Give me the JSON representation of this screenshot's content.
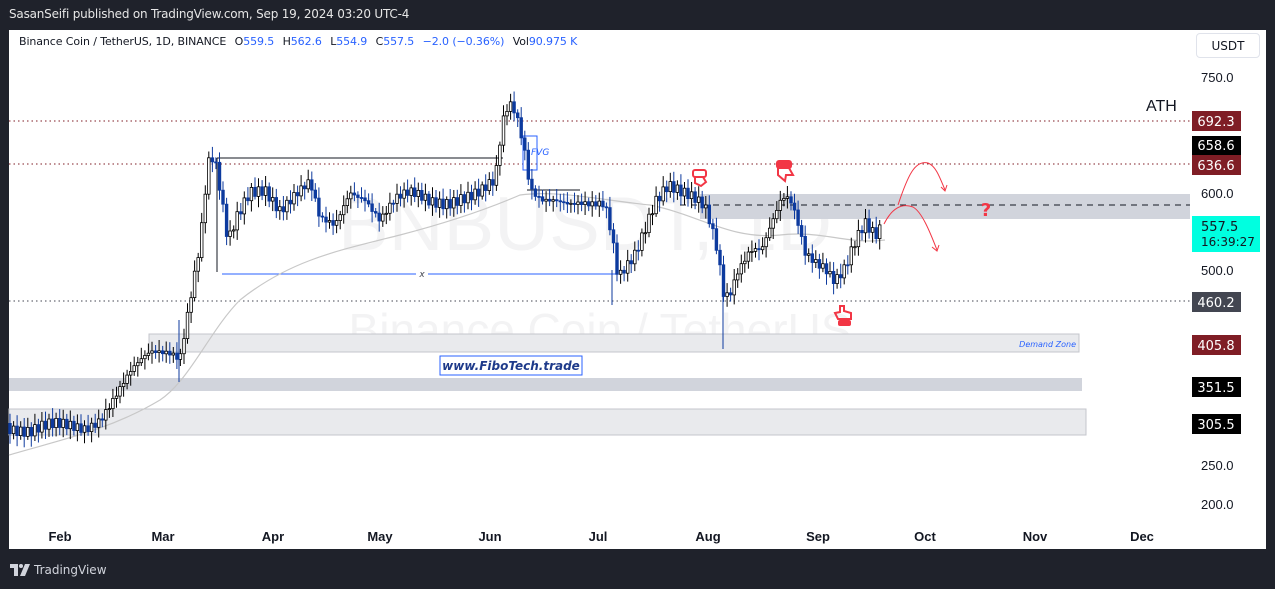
{
  "header": {
    "publisher_line": "SasanSeifi published on TradingView.com, Sep 19, 2024 03:20 UTC-4"
  },
  "legend": {
    "symbol": "Binance Coin / TetherUS, 1D, BINANCE",
    "open_label": "O",
    "open": "559.5",
    "high_label": "H",
    "high": "562.6",
    "low_label": "L",
    "low": "554.9",
    "close_label": "C",
    "close": "557.5",
    "change": "−2.0 (−0.36%)",
    "vol_label": "Vol",
    "vol": "90.975 K"
  },
  "currency_button": "USDT",
  "watermark": {
    "ticker": "BNBUSDT, 1D",
    "name": "Binance Coin / TetherUS"
  },
  "annotations": {
    "ath": "ATH",
    "fvg": "FVG",
    "demand_zone": "Demand Zone",
    "website": "www.FiboTech.trade",
    "range_mid_marker": "x",
    "question": "?"
  },
  "price_labels": [
    {
      "value": "692.3",
      "bg": "#7f1d25",
      "fg": "#ffffff"
    },
    {
      "value": "658.6",
      "bg": "#000000",
      "fg": "#ffffff"
    },
    {
      "value": "636.6",
      "bg": "#7f1d25",
      "fg": "#ffffff"
    },
    {
      "value": "557.5",
      "sub": "16:39:27",
      "bg": "#00ffe0",
      "fg": "#131722"
    },
    {
      "value": "460.2",
      "bg": "#434651",
      "fg": "#ffffff"
    },
    {
      "value": "405.8",
      "bg": "#7f1d25",
      "fg": "#ffffff"
    },
    {
      "value": "351.5",
      "bg": "#000000",
      "fg": "#ffffff"
    },
    {
      "value": "305.5",
      "bg": "#000000",
      "fg": "#ffffff"
    }
  ],
  "footer": {
    "brand": "TradingView"
  },
  "colors": {
    "bear_candle": "#0d3a9e",
    "bull_candle_border": "#000000",
    "level_line": "#7f1d25",
    "zone_fill": "#d1d4dc",
    "zone_fill_light": "#e9eaed",
    "ma_line": "#bdbdbd",
    "projection": "#f23645",
    "accent_blue": "#2962ff",
    "live_price": "#00ffe0"
  },
  "chart_data": {
    "type": "candlestick",
    "title": "Binance Coin / TetherUS, 1D, BINANCE",
    "xlabel": "",
    "ylabel": "USDT",
    "ylim": [
      180,
      790
    ],
    "y_ticks": [
      200.0,
      250.0,
      300.0,
      350.0,
      400.0,
      450.0,
      500.0,
      550.0,
      600.0,
      650.0,
      700.0,
      750.0
    ],
    "y_ticks_visible": [
      "750.0",
      "600.0",
      "500.0",
      "250.0",
      "200.0"
    ],
    "x_ticks": [
      "Feb",
      "Mar",
      "Apr",
      "May",
      "Jun",
      "Jul",
      "Aug",
      "Sep",
      "Oct",
      "Nov",
      "Dec"
    ],
    "last_candle": {
      "date": "2024-09-19",
      "open": 559.5,
      "high": 562.6,
      "low": 554.9,
      "close": 557.5,
      "change": -2.0,
      "change_pct": -0.36,
      "volume": "90.975K"
    },
    "countdown": "16:39:27",
    "horizontal_levels": [
      {
        "price": 692.3,
        "style": "dotted",
        "label": "ATH"
      },
      {
        "price": 636.6,
        "style": "dotted"
      },
      {
        "price": 460.2,
        "style": "dotted"
      },
      {
        "price": 580,
        "style": "dashed",
        "note": "resistance midline"
      }
    ],
    "zones": [
      {
        "name": "Resistance zone",
        "from": 565,
        "to": 597
      },
      {
        "name": "Demand Zone",
        "from": 395,
        "to": 418
      },
      {
        "name": "Support zone 2",
        "from": 341,
        "to": 358
      },
      {
        "name": "Support zone 3",
        "from": 272,
        "to": 305
      }
    ],
    "range_box": {
      "top": 658.6,
      "bottom": 493,
      "start": "Mar 15",
      "end": "Jul 5"
    },
    "approx_series": {
      "dates": [
        "Jan 15",
        "Feb 1",
        "Feb 15",
        "Mar 1",
        "Mar 10",
        "Mar 15",
        "Apr 1",
        "Apr 15",
        "May 1",
        "May 15",
        "Jun 1",
        "Jun 6",
        "Jun 15",
        "Jul 1",
        "Jul 5",
        "Jul 15",
        "Jul 28",
        "Aug 5",
        "Aug 15",
        "Aug 23",
        "Sep 1",
        "Sep 6",
        "Sep 19"
      ],
      "close": [
        305,
        300,
        330,
        400,
        520,
        630,
        600,
        570,
        580,
        590,
        600,
        700,
        600,
        560,
        510,
        560,
        600,
        470,
        530,
        590,
        520,
        480,
        557.5
      ]
    },
    "moving_average": {
      "type": "SMA",
      "note": "grey smoothed line, ~527 at Jun, ~545 at Sep"
    },
    "grid": false,
    "legend_position": "top-left"
  }
}
